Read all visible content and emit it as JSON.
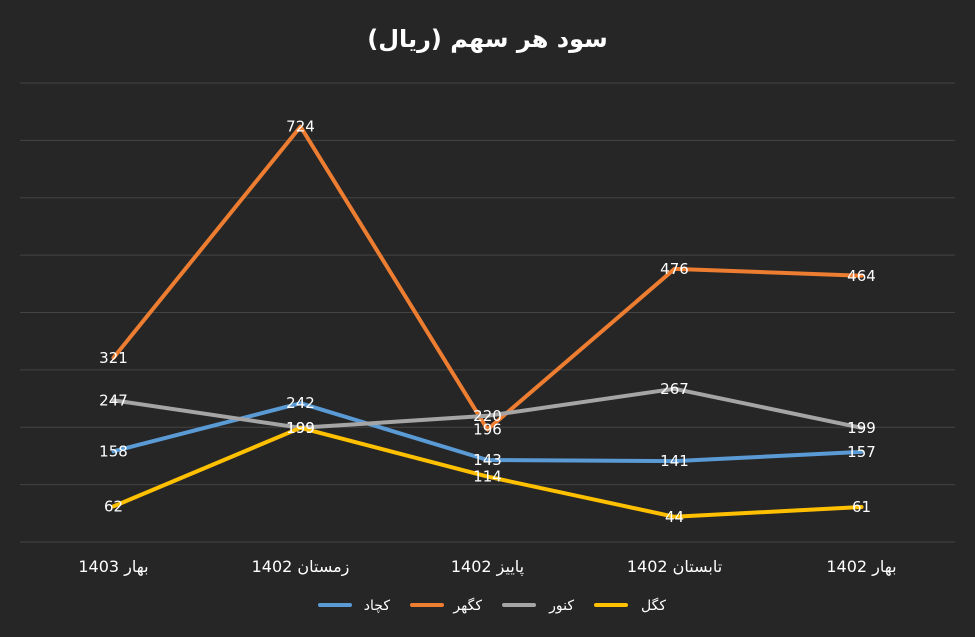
{
  "chart_data": {
    "type": "line",
    "title": "سود هر سهم (ریال)",
    "categories": [
      "بهار 1403",
      "زمستان 1402",
      "پاییز 1402",
      "تابستان 1402",
      "بهار 1402"
    ],
    "ylim": [
      0,
      800
    ],
    "grid": true,
    "legend_position": "bottom",
    "series": [
      {
        "name": "کچاد",
        "color": "#5B9BD5",
        "values": [
          158,
          242,
          143,
          141,
          157
        ]
      },
      {
        "name": "کگهر",
        "color": "#ED7D31",
        "values": [
          321,
          724,
          196,
          476,
          464
        ]
      },
      {
        "name": "کنور",
        "color": "#A5A5A5",
        "values": [
          247,
          199,
          220,
          267,
          199
        ]
      },
      {
        "name": "کگل",
        "color": "#FFC000",
        "values": [
          62,
          199,
          114,
          44,
          61
        ]
      }
    ]
  }
}
